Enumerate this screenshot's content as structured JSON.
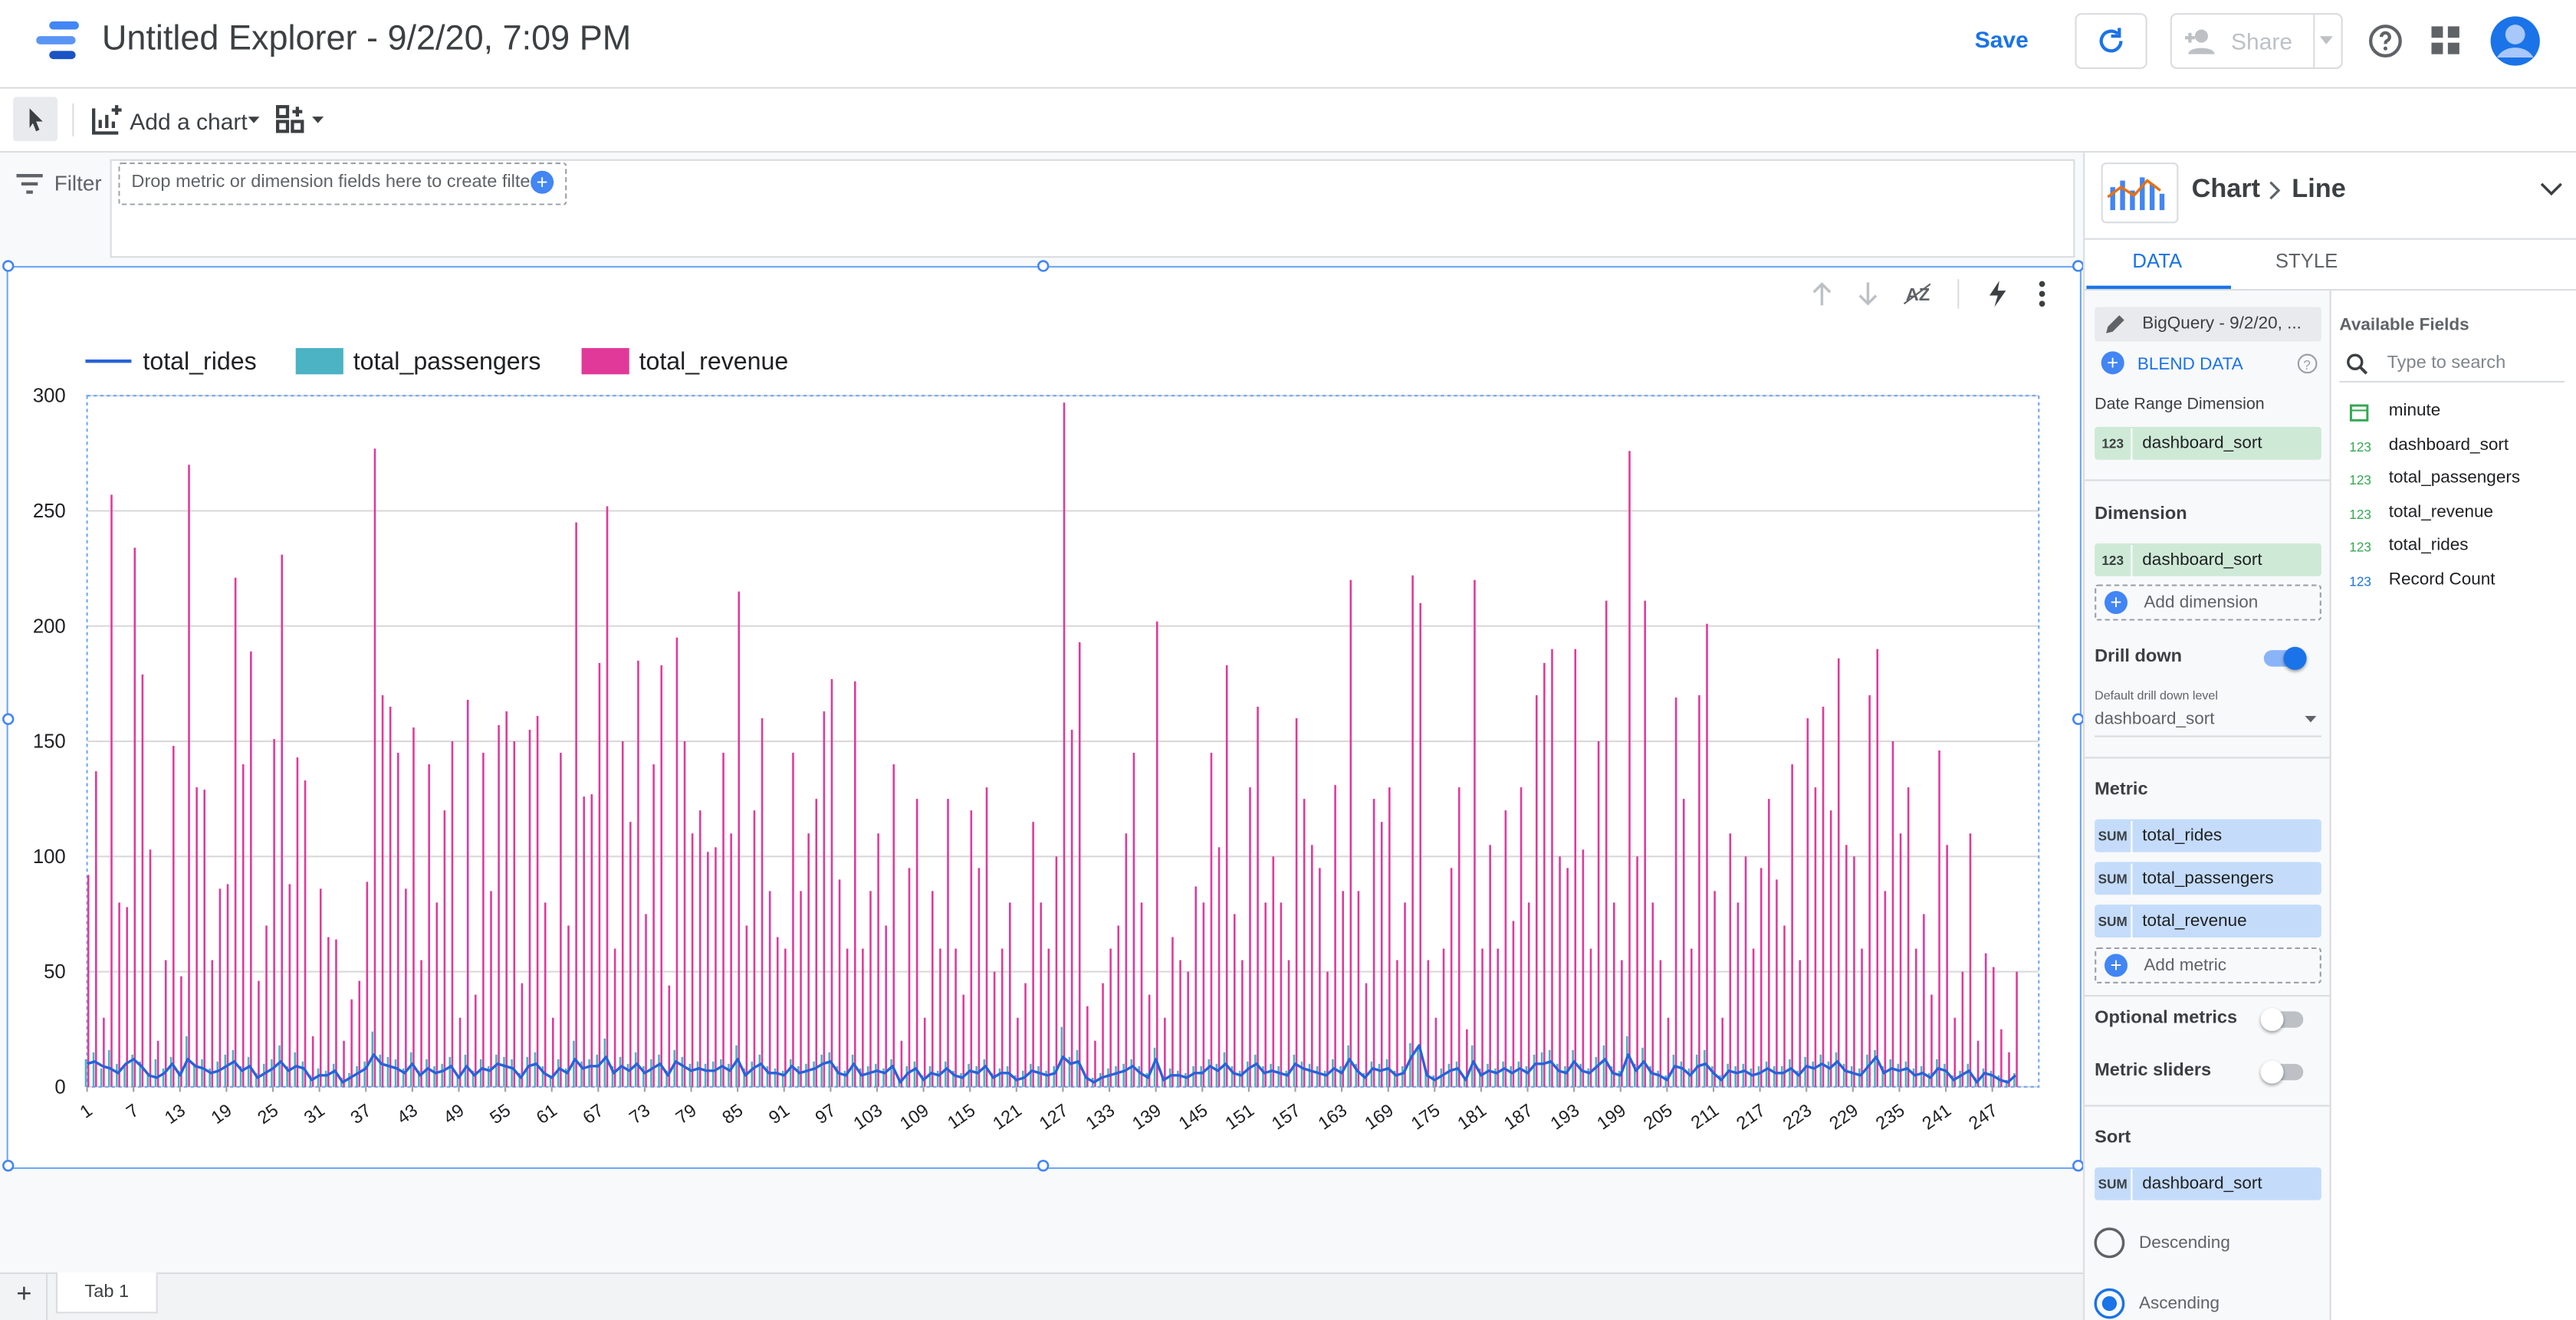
{
  "header": {
    "title": "Untitled Explorer - 9/2/20, 7:09 PM",
    "save": "Save",
    "share": "Share"
  },
  "toolbar": {
    "add_chart": "Add a chart"
  },
  "filter": {
    "label": "Filter",
    "placeholder": "Drop metric or dimension fields here to create filters"
  },
  "chart_data": {
    "type": "combo",
    "x": [
      1,
      2,
      3,
      4,
      5,
      6,
      7,
      8,
      9,
      10,
      11,
      12,
      13,
      14,
      15,
      16,
      17,
      18,
      19,
      20,
      21,
      22,
      23,
      24,
      25,
      26,
      27,
      28,
      29,
      30,
      31,
      32,
      33,
      34,
      35,
      36,
      37,
      38,
      39,
      40,
      41,
      42,
      43,
      44,
      45,
      46,
      47,
      48,
      49,
      50,
      51,
      52,
      53,
      54,
      55,
      56,
      57,
      58,
      59,
      60,
      61,
      62,
      63,
      64,
      65,
      66,
      67,
      68,
      69,
      70,
      71,
      72,
      73,
      74,
      75,
      76,
      77,
      78,
      79,
      80,
      81,
      82,
      83,
      84,
      85,
      86,
      87,
      88,
      89,
      90,
      91,
      92,
      93,
      94,
      95,
      96,
      97,
      98,
      99,
      100,
      101,
      102,
      103,
      104,
      105,
      106,
      107,
      108,
      109,
      110,
      111,
      112,
      113,
      114,
      115,
      116,
      117,
      118,
      119,
      120,
      121,
      122,
      123,
      124,
      125,
      126,
      127,
      128,
      129,
      130,
      131,
      132,
      133,
      134,
      135,
      136,
      137,
      138,
      139,
      140,
      141,
      142,
      143,
      144,
      145,
      146,
      147,
      148,
      149,
      150,
      151,
      152,
      153,
      154,
      155,
      156,
      157,
      158,
      159,
      160,
      161,
      162,
      163,
      164,
      165,
      166,
      167,
      168,
      169,
      170,
      171,
      172,
      173,
      174,
      175,
      176,
      177,
      178,
      179,
      180,
      181,
      182,
      183,
      184,
      185,
      186,
      187,
      188,
      189,
      190,
      191,
      192,
      193,
      194,
      195,
      196,
      197,
      198,
      199,
      200,
      201,
      202,
      203,
      204,
      205,
      206,
      207,
      208,
      209,
      210,
      211,
      212,
      213,
      214,
      215,
      216,
      217,
      218,
      219,
      220,
      221,
      222,
      223,
      224,
      225,
      226,
      227,
      228,
      229,
      230,
      231,
      232,
      233,
      234,
      235,
      236,
      237,
      238,
      239,
      240,
      241,
      242,
      243,
      244,
      245,
      246,
      247,
      248,
      249,
      250
    ],
    "series": [
      {
        "name": "total_rides",
        "mark": "line",
        "color": "#2962d9",
        "values": [
          10,
          11,
          9,
          8,
          6,
          10,
          12,
          9,
          5,
          4,
          6,
          10,
          5,
          12,
          9,
          8,
          6,
          7,
          9,
          11,
          7,
          9,
          4,
          6,
          8,
          11,
          7,
          9,
          8,
          3,
          5,
          5,
          7,
          2,
          4,
          6,
          8,
          14,
          10,
          9,
          8,
          6,
          10,
          5,
          8,
          6,
          7,
          9,
          4,
          9,
          5,
          8,
          7,
          10,
          9,
          8,
          4,
          9,
          10,
          6,
          4,
          8,
          6,
          12,
          8,
          9,
          9,
          13,
          6,
          9,
          7,
          10,
          6,
          8,
          10,
          5,
          11,
          9,
          7,
          8,
          7,
          7,
          9,
          7,
          12,
          5,
          8,
          10,
          6,
          6,
          5,
          9,
          6,
          7,
          8,
          10,
          11,
          6,
          5,
          10,
          5,
          6,
          7,
          6,
          9,
          2,
          6,
          8,
          3,
          6,
          5,
          8,
          5,
          4,
          7,
          6,
          9,
          4,
          6,
          6,
          3,
          4,
          7,
          6,
          5,
          6,
          13,
          10,
          11,
          4,
          2,
          4,
          5,
          6,
          7,
          9,
          6,
          4,
          12,
          3,
          5,
          5,
          4,
          6,
          6,
          9,
          7,
          10,
          6,
          5,
          8,
          10,
          6,
          7,
          6,
          5,
          10,
          8,
          7,
          6,
          5,
          8,
          6,
          12,
          7,
          4,
          8,
          7,
          8,
          5,
          6,
          13,
          18,
          5,
          3,
          5,
          7,
          8,
          3,
          11,
          5,
          7,
          6,
          8,
          6,
          8,
          6,
          10,
          10,
          11,
          7,
          6,
          11,
          7,
          6,
          9,
          12,
          6,
          5,
          14,
          7,
          11,
          6,
          5,
          3,
          9,
          8,
          5,
          9,
          10,
          6,
          3,
          7,
          6,
          7,
          5,
          6,
          8,
          6,
          6,
          8,
          5,
          9,
          8,
          10,
          8,
          11,
          7,
          6,
          5,
          9,
          13,
          6,
          8,
          7,
          8,
          5,
          6,
          4,
          8,
          7,
          3,
          5,
          7,
          2,
          6,
          5,
          3,
          2,
          5
        ]
      },
      {
        "name": "total_passengers",
        "mark": "bar",
        "color": "#4bb3c3",
        "values": [
          12,
          15,
          8,
          16,
          10,
          9,
          14,
          11,
          6,
          12,
          8,
          13,
          7,
          22,
          10,
          12,
          8,
          11,
          14,
          16,
          9,
          13,
          6,
          10,
          12,
          18,
          9,
          15,
          11,
          5,
          8,
          7,
          10,
          4,
          6,
          9,
          11,
          24,
          14,
          13,
          12,
          8,
          15,
          7,
          12,
          9,
          10,
          13,
          5,
          14,
          7,
          12,
          9,
          14,
          13,
          12,
          6,
          13,
          15,
          9,
          5,
          12,
          8,
          20,
          11,
          12,
          14,
          21,
          9,
          13,
          10,
          15,
          9,
          12,
          14,
          7,
          16,
          13,
          10,
          11,
          10,
          11,
          12,
          10,
          18,
          8,
          11,
          14,
          9,
          8,
          7,
          12,
          9,
          10,
          11,
          14,
          15,
          9,
          7,
          14,
          8,
          9,
          10,
          8,
          12,
          4,
          9,
          11,
          5,
          9,
          7,
          11,
          7,
          6,
          10,
          9,
          12,
          6,
          8,
          9,
          5,
          7,
          10,
          9,
          7,
          9,
          26,
          13,
          16,
          6,
          4,
          6,
          8,
          9,
          10,
          12,
          9,
          6,
          17,
          5,
          8,
          7,
          6,
          9,
          9,
          12,
          10,
          15,
          9,
          7,
          11,
          14,
          9,
          10,
          9,
          7,
          14,
          11,
          10,
          9,
          7,
          12,
          9,
          18,
          10,
          6,
          11,
          10,
          12,
          7,
          9,
          19,
          17,
          7,
          5,
          8,
          10,
          11,
          4,
          18,
          8,
          10,
          8,
          11,
          9,
          11,
          9,
          14,
          15,
          16,
          10,
          9,
          16,
          10,
          8,
          13,
          18,
          9,
          7,
          22,
          10,
          17,
          9,
          7,
          5,
          14,
          11,
          8,
          14,
          16,
          9,
          5,
          10,
          9,
          10,
          8,
          9,
          11,
          9,
          9,
          12,
          7,
          13,
          11,
          14,
          11,
          15,
          10,
          9,
          8,
          14,
          16,
          9,
          12,
          10,
          11,
          8,
          9,
          6,
          12,
          10,
          5,
          7,
          10,
          4,
          8,
          7,
          5,
          3,
          6
        ]
      },
      {
        "name": "total_revenue",
        "mark": "bar",
        "color": "#e0399a",
        "values": [
          92,
          137,
          30,
          257,
          80,
          78,
          234,
          179,
          103,
          20,
          55,
          148,
          48,
          270,
          130,
          129,
          55,
          86,
          88,
          221,
          140,
          189,
          46,
          70,
          151,
          231,
          88,
          143,
          133,
          22,
          86,
          65,
          64,
          20,
          38,
          46,
          89,
          277,
          170,
          165,
          145,
          86,
          156,
          55,
          140,
          80,
          120,
          150,
          30,
          168,
          40,
          145,
          85,
          157,
          163,
          150,
          45,
          155,
          161,
          80,
          30,
          145,
          70,
          245,
          126,
          127,
          184,
          252,
          60,
          150,
          115,
          185,
          75,
          140,
          183,
          44,
          195,
          150,
          110,
          120,
          102,
          104,
          145,
          110,
          215,
          70,
          120,
          160,
          85,
          65,
          60,
          145,
          85,
          110,
          125,
          163,
          177,
          90,
          60,
          176,
          60,
          85,
          110,
          70,
          140,
          20,
          95,
          125,
          30,
          85,
          60,
          125,
          60,
          40,
          120,
          95,
          130,
          50,
          60,
          80,
          30,
          45,
          115,
          80,
          60,
          100,
          297,
          155,
          193,
          35,
          20,
          45,
          60,
          70,
          110,
          145,
          80,
          40,
          202,
          30,
          65,
          55,
          50,
          87,
          80,
          145,
          104,
          183,
          75,
          55,
          130,
          165,
          80,
          100,
          80,
          55,
          160,
          125,
          105,
          95,
          50,
          131,
          85,
          220,
          85,
          45,
          125,
          115,
          130,
          55,
          80,
          222,
          210,
          55,
          30,
          60,
          95,
          130,
          25,
          220,
          60,
          105,
          60,
          120,
          72,
          130,
          80,
          170,
          184,
          190,
          100,
          95,
          190,
          103,
          60,
          150,
          211,
          80,
          55,
          276,
          100,
          211,
          80,
          55,
          30,
          169,
          125,
          60,
          170,
          201,
          85,
          30,
          110,
          80,
          100,
          60,
          95,
          125,
          90,
          70,
          140,
          55,
          160,
          130,
          165,
          120,
          186,
          105,
          100,
          60,
          170,
          190,
          85,
          150,
          110,
          130,
          60,
          75,
          40,
          146,
          105,
          30,
          50,
          110,
          20,
          58,
          52,
          25,
          15,
          50
        ]
      }
    ],
    "xlim": [
      1,
      253
    ],
    "xticks": [
      1,
      7,
      13,
      19,
      25,
      31,
      37,
      43,
      49,
      55,
      61,
      67,
      73,
      79,
      85,
      91,
      97,
      103,
      109,
      115,
      121,
      127,
      133,
      139,
      145,
      151,
      157,
      163,
      169,
      175,
      181,
      187,
      193,
      199,
      205,
      211,
      217,
      223,
      229,
      235,
      241,
      247
    ],
    "ylim": [
      0,
      300
    ],
    "yticks": [
      0,
      50,
      100,
      150,
      200,
      250,
      300
    ],
    "grid": true,
    "legend": "top"
  },
  "panel": {
    "chart_label": "Chart",
    "chart_type": "Line",
    "tabs": [
      "DATA",
      "STYLE"
    ],
    "data_source": "BigQuery - 9/2/20, ...",
    "blend": "BLEND DATA",
    "date_range_dimension": {
      "label": "Date Range Dimension",
      "type": "123",
      "field": "dashboard_sort"
    },
    "dimension": {
      "label": "Dimension",
      "type": "123",
      "field": "dashboard_sort",
      "add": "Add dimension"
    },
    "drill_down": {
      "label": "Drill down",
      "default_label": "Default drill down level",
      "value": "dashboard_sort"
    },
    "metric": {
      "label": "Metric",
      "items": [
        {
          "agg": "SUM",
          "field": "total_rides"
        },
        {
          "agg": "SUM",
          "field": "total_passengers"
        },
        {
          "agg": "SUM",
          "field": "total_revenue"
        }
      ],
      "add": "Add metric"
    },
    "optional_metrics": "Optional metrics",
    "metric_sliders": "Metric sliders",
    "sort": {
      "label": "Sort",
      "agg": "SUM",
      "field": "dashboard_sort",
      "options": [
        "Descending",
        "Ascending"
      ]
    },
    "available_fields": {
      "label": "Available Fields",
      "search": "Type to search",
      "fields": [
        {
          "name": "minute"
        },
        {
          "type": "123",
          "name": "dashboard_sort"
        },
        {
          "type": "123",
          "name": "total_passengers"
        },
        {
          "type": "123",
          "name": "total_revenue"
        },
        {
          "type": "123",
          "name": "total_rides"
        },
        {
          "type": "123",
          "name": "Record Count"
        }
      ]
    }
  },
  "tabs": [
    "Tab 1"
  ]
}
